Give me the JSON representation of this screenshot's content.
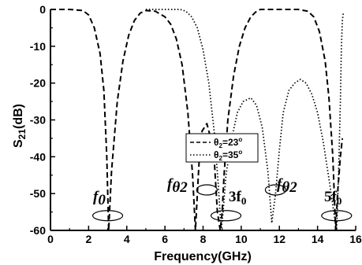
{
  "chart_data": {
    "type": "line",
    "xlabel": "Frequency(GHz)",
    "ylabel": {
      "base": "S",
      "sub": "21",
      "rest": "(dB)"
    },
    "xlim": [
      0,
      16
    ],
    "ylim": [
      -60,
      0
    ],
    "xticks": [
      "0",
      "2",
      "4",
      "6",
      "8",
      "10",
      "12",
      "14",
      "16"
    ],
    "yticks": [
      "0",
      "-10",
      "-20",
      "-30",
      "-40",
      "-50",
      "-60"
    ],
    "grid": false,
    "legend_position": "center",
    "series": [
      {
        "name": "θ2=23°",
        "legend": {
          "theta": "θ",
          "sub": "2",
          "value": "=23",
          "sup": "o"
        },
        "style": "dashed",
        "color": "#000000",
        "x": [
          0,
          1.0,
          1.7,
          2.0,
          2.3,
          2.6,
          2.8,
          2.95,
          3.05,
          3.2,
          3.5,
          3.8,
          4.1,
          4.4,
          4.7,
          5.0,
          5.5,
          6.0,
          6.3,
          6.6,
          6.9,
          7.2,
          7.45,
          7.6,
          7.75,
          7.85,
          7.95,
          8.2,
          8.4,
          8.6,
          8.75,
          8.9,
          9.0,
          9.1,
          9.3,
          9.6,
          9.9,
          10.2,
          10.5,
          10.8,
          11.0,
          11.3,
          12.0,
          12.5,
          13.0,
          13.5,
          13.8,
          14.1,
          14.4,
          14.6,
          14.8,
          14.95,
          15.05,
          15.2,
          15.3
        ],
        "y": [
          0,
          0,
          -0.3,
          -1.5,
          -5,
          -12,
          -22,
          -40,
          -60,
          -44,
          -25,
          -14,
          -7,
          -3,
          -1,
          -0.3,
          -0.5,
          -2,
          -4,
          -8,
          -15,
          -28,
          -45,
          -60,
          -45,
          -36,
          -33,
          -31,
          -35,
          -42,
          -55,
          -60,
          -55,
          -45,
          -30,
          -18,
          -10,
          -5,
          -2,
          -0.5,
          0,
          0,
          0,
          0,
          0,
          -0.5,
          -2,
          -6,
          -14,
          -24,
          -40,
          -60,
          -50,
          -40,
          -35
        ]
      },
      {
        "name": "θ2=35°",
        "legend": {
          "theta": "θ",
          "sub": "2",
          "value": "=35",
          "sup": "o"
        },
        "style": "dotted",
        "color": "#000000",
        "x": [
          5.0,
          6.8,
          7.1,
          7.4,
          7.7,
          8.0,
          8.3,
          8.6,
          8.8,
          8.95,
          9.05,
          9.2,
          9.5,
          9.8,
          10.1,
          10.5,
          10.8,
          11.1,
          11.4,
          11.6,
          11.8,
          12.0,
          12.2,
          12.5,
          12.8,
          13.1,
          13.4,
          13.7,
          14.0,
          14.3,
          14.6,
          14.85,
          15.0,
          15.1,
          15.2,
          15.25,
          15.3,
          15.35
        ],
        "y": [
          0,
          0,
          -0.5,
          -2,
          -5,
          -11,
          -20,
          -34,
          -48,
          -60,
          -55,
          -45,
          -35,
          -28,
          -25,
          -24,
          -26,
          -32,
          -44,
          -58,
          -50,
          -38,
          -28,
          -22,
          -20,
          -19,
          -20,
          -23,
          -28,
          -36,
          -46,
          -55,
          -60,
          -45,
          -25,
          -10,
          -3,
          -1
        ]
      }
    ],
    "annotations": [
      {
        "text": "f",
        "sub": "0",
        "target_x": 3.0,
        "target_y": -56
      },
      {
        "text": "f",
        "sub": "θ2",
        "target_x": 8.2,
        "target_y": -49
      },
      {
        "text": "3f",
        "sub": "0",
        "target_x": 9.2,
        "target_y": -56
      },
      {
        "text": "f",
        "sub": "θ2",
        "target_x": 11.8,
        "target_y": -49
      },
      {
        "text": "5f",
        "sub": "0",
        "target_x": 15.0,
        "target_y": -56
      }
    ]
  }
}
